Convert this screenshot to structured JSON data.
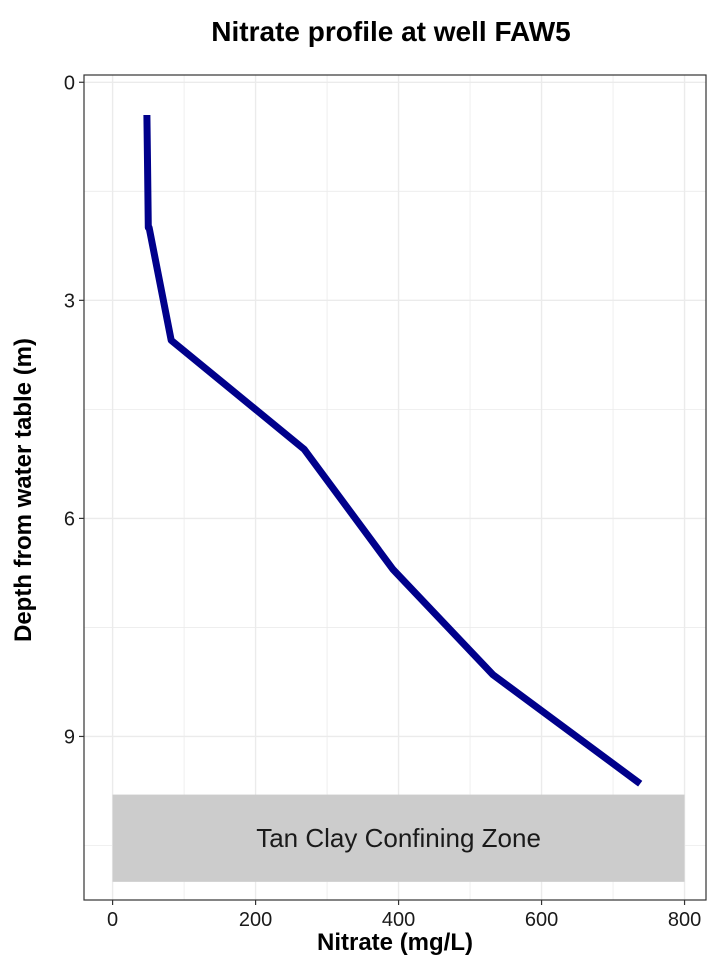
{
  "chart_data": {
    "type": "line",
    "title": "Nitrate profile at well FAW5",
    "xlabel": "Nitrate (mg/L)",
    "ylabel": "Depth from water table (m)",
    "xlim": [
      -40,
      830
    ],
    "ylim": [
      11.25,
      -0.1
    ],
    "y_reversed": true,
    "grid": true,
    "x_ticks": [
      0,
      200,
      400,
      600,
      800
    ],
    "y_ticks": [
      0,
      3,
      6,
      9
    ],
    "series": [
      {
        "color": "#00008b",
        "x": [
          48,
          49,
          50,
          51,
          82,
          268,
          392,
          532,
          738
        ],
        "y": [
          0.45,
          1.2,
          2.0,
          2.0,
          3.55,
          5.05,
          6.7,
          8.15,
          9.65
        ]
      }
    ],
    "annotations": [
      {
        "type": "rect",
        "label": "Tan Clay Confining Zone",
        "fill": "#cccccc",
        "x": [
          0,
          800
        ],
        "y": [
          9.8,
          11.0
        ]
      }
    ],
    "colors": {
      "line": "#00008b",
      "grid": "#ebebeb",
      "panel_border": "#333333",
      "zone_fill": "#cccccc"
    }
  }
}
